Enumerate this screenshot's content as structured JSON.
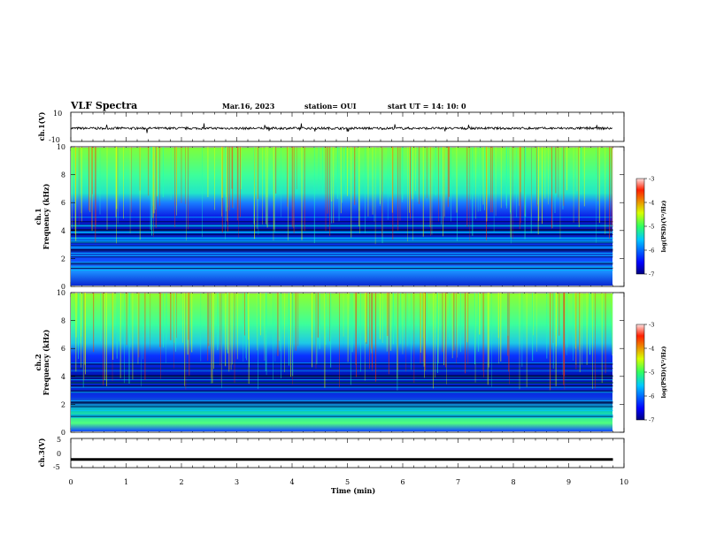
{
  "header": {
    "title": "VLF Spectra",
    "date": "Mar.16, 2023",
    "station": "station= OUI",
    "start": "start  UT =  14: 10: 0"
  },
  "chart_data": [
    {
      "type": "line",
      "panel": "ch1-waveform",
      "ylabel": "ch.1(V)",
      "ylim": [
        -10,
        10
      ],
      "y_ticks": [
        "10",
        "-10"
      ],
      "xlim": [
        0,
        10
      ],
      "baseline": -1
    },
    {
      "type": "heatmap",
      "panel": "ch1-spectrogram",
      "ylabel_channel": "ch.1",
      "ylabel": "Frequency  (kHz)",
      "ylim": [
        0,
        10
      ],
      "y_ticks": [
        "0",
        "2",
        "4",
        "6",
        "8",
        "10"
      ],
      "xlim": [
        0,
        10
      ],
      "data_end_min": 9.8,
      "colorbar": {
        "label": "log(PSD)(V²/Hz)",
        "range": [
          -7,
          -3
        ],
        "ticks": [
          "-3",
          "-4",
          "-5",
          "-6",
          "-7"
        ]
      }
    },
    {
      "type": "heatmap",
      "panel": "ch2-spectrogram",
      "ylabel_channel": "ch.2",
      "ylabel": "Frequency  (kHz)",
      "ylim": [
        0,
        10
      ],
      "y_ticks": [
        "0",
        "2",
        "4",
        "6",
        "8",
        "10"
      ],
      "xlim": [
        0,
        10
      ],
      "data_end_min": 9.8,
      "colorbar": {
        "label": "log(PSD)(V²/Hz)",
        "range": [
          -7,
          -3
        ],
        "ticks": [
          "-3",
          "-4",
          "-5",
          "-6",
          "-7"
        ]
      }
    },
    {
      "type": "line",
      "panel": "ch3-waveform",
      "ylabel": "ch.3(V)",
      "ylim": [
        -5,
        5
      ],
      "y_ticks": [
        "5",
        "0",
        "-5"
      ],
      "xlim": [
        0,
        10
      ],
      "baseline": -2.2
    }
  ],
  "xaxis": {
    "label": "Time  (min)",
    "ticks": [
      "0",
      "1",
      "2",
      "3",
      "4",
      "5",
      "6",
      "7",
      "8",
      "9",
      "10"
    ]
  }
}
